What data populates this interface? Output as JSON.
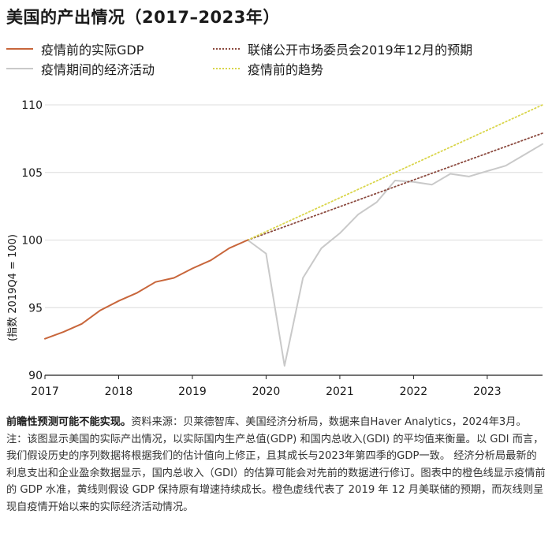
{
  "title": "美国的产出情况（2017–2023年）",
  "legend": {
    "orange": "疫情前的实际GDP",
    "gray": "疫情期间的经济活动",
    "fed": "联储公开市场委员会2019年12月的预期",
    "trend": "疫情前的趋势"
  },
  "colors": {
    "orange": "#c8663b",
    "gray": "#c9c9c9",
    "fed": "#8b4a3f",
    "trend": "#d9d54a",
    "grid": "#dcdcdc"
  },
  "note": {
    "lead": "前瞻性预测可能不能实现。",
    "text": "资料来源：贝莱德智库、美国经济分析局，数据来自Haver Analytics，2024年3月。注：该图显示美国的实际产出情况，以实际国内生产总值(GDP) 和国内总收入(GDI) 的平均值来衡量。以 GDI 而言，我们假设历史的序列数据将根据我们的估计值向上修正，且其成长与2023年第四季的GDP一致。 经济分析局最新的利息支出和企业盈余数据显示，国内总收入（GDI）的估算可能会对先前的数据进行修订。图表中的橙色线显示疫情前的 GDP 水准，黄线则假设 GDP 保持原有增速持续成长。橙色虚线代表了 2019 年 12 月美联储的预期，而灰线则呈现自疫情开始以来的实际经济活动情况。"
  },
  "chart_data": {
    "type": "line",
    "ylabel": "(指数 2019Q4 = 100)",
    "xlim": [
      2017.0,
      2023.75
    ],
    "ylim": [
      90,
      110
    ],
    "yticks": [
      90,
      95,
      100,
      105,
      110
    ],
    "xticks": [
      2017,
      2018,
      2019,
      2020,
      2021,
      2022,
      2023
    ],
    "grid": "horizontal",
    "series": [
      {
        "key": "orange",
        "name": "疫情前的实际GDP",
        "style": "solid",
        "x": [
          2017.0,
          2017.25,
          2017.5,
          2017.75,
          2018.0,
          2018.25,
          2018.5,
          2018.75,
          2019.0,
          2019.25,
          2019.5,
          2019.75
        ],
        "y": [
          92.7,
          93.2,
          93.8,
          94.8,
          95.5,
          96.1,
          96.9,
          97.2,
          97.9,
          98.5,
          99.4,
          100.0
        ]
      },
      {
        "key": "gray",
        "name": "疫情期间的经济活动",
        "style": "solid",
        "x": [
          2019.75,
          2020.0,
          2020.25,
          2020.5,
          2020.75,
          2021.0,
          2021.25,
          2021.5,
          2021.75,
          2022.0,
          2022.25,
          2022.5,
          2022.75,
          2023.0,
          2023.25,
          2023.5,
          2023.75
        ],
        "y": [
          100.0,
          99.0,
          90.7,
          97.2,
          99.4,
          100.5,
          101.9,
          102.8,
          104.4,
          104.3,
          104.1,
          104.9,
          104.7,
          105.1,
          105.5,
          106.3,
          107.1
        ]
      },
      {
        "key": "fed",
        "name": "联储公开市场委员会2019年12月的预期",
        "style": "dotted",
        "x": [
          2019.75,
          2023.75
        ],
        "y": [
          100.0,
          107.9
        ]
      },
      {
        "key": "trend",
        "name": "疫情前的趋势",
        "style": "dotted",
        "x": [
          2019.75,
          2023.75
        ],
        "y": [
          100.0,
          110.0
        ]
      }
    ]
  }
}
